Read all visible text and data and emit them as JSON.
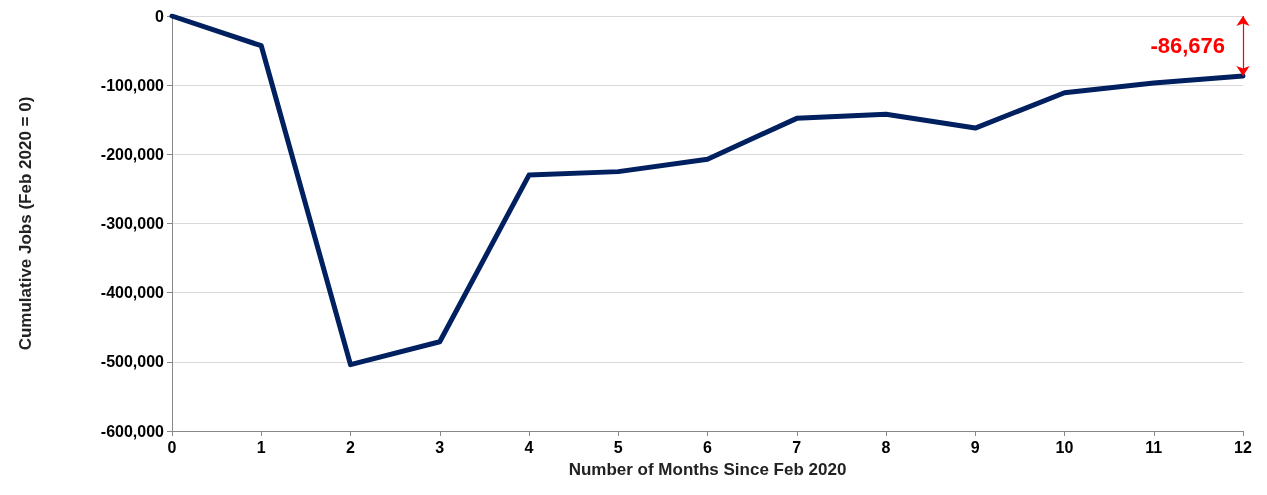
{
  "chart_data": {
    "type": "line",
    "xlabel": "Number of Months Since Feb 2020",
    "ylabel": "Cumulative Jobs (Feb 2020 = 0)",
    "x": [
      0,
      1,
      2,
      3,
      4,
      5,
      6,
      7,
      8,
      9,
      10,
      11,
      12
    ],
    "series": [
      {
        "color": "#002060",
        "values": [
          0,
          -43000,
          -504000,
          -471000,
          -230000,
          -225000,
          -207000,
          -148000,
          -142000,
          -162000,
          -111000,
          -97000,
          -86676
        ]
      }
    ],
    "xlim": [
      0,
      12
    ],
    "xticks": [
      0,
      1,
      2,
      3,
      4,
      5,
      6,
      7,
      8,
      9,
      10,
      11,
      12
    ],
    "ylim": [
      -600000,
      0
    ],
    "yticks": [
      {
        "value": -600000,
        "label": "-600,000"
      },
      {
        "value": -500000,
        "label": "-500,000"
      },
      {
        "value": -400000,
        "label": "-400,000"
      },
      {
        "value": -300000,
        "label": "-300,000"
      },
      {
        "value": -200000,
        "label": "-200,000"
      },
      {
        "value": -100000,
        "label": "-100,000"
      },
      0
    ],
    "grid": "y",
    "marker": "none",
    "line_style": "solid",
    "annotations": [
      {
        "text": "-86,676",
        "x": 12,
        "y": -86676
      }
    ]
  }
}
